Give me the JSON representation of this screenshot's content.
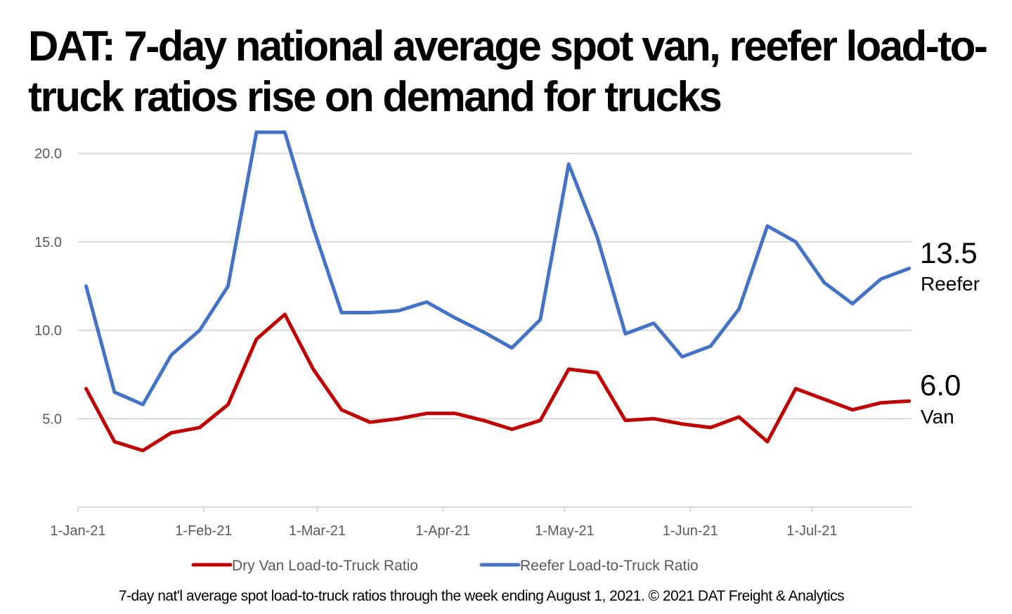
{
  "chart_data": {
    "type": "line",
    "title": "DAT: 7-day national average spot van, reefer load-to-truck ratios rise on demand for trucks",
    "caption": "7-day nat'l average spot load-to-truck ratios through the week ending August 1, 2021. © 2021 DAT Freight & Analytics",
    "xlabel": "",
    "ylabel": "",
    "ylim": [
      0,
      21.5
    ],
    "y_ticks": [
      "5.0",
      "10.0",
      "15.0",
      "20.0"
    ],
    "x_ticks": [
      "1-Jan-21",
      "1-Feb-21",
      "1-Mar-21",
      "1-Apr-21",
      "1-May-21",
      "1-Jun-21",
      "1-Jul-21"
    ],
    "x_tick_dates": [
      "2021-01-01",
      "2021-02-01",
      "2021-03-01",
      "2021-04-01",
      "2021-05-01",
      "2021-06-01",
      "2021-07-01"
    ],
    "grid": true,
    "legend": "bottom",
    "x": [
      "2021-01-03",
      "2021-01-10",
      "2021-01-17",
      "2021-01-24",
      "2021-01-31",
      "2021-02-07",
      "2021-02-14",
      "2021-02-21",
      "2021-02-28",
      "2021-03-07",
      "2021-03-14",
      "2021-03-21",
      "2021-03-28",
      "2021-04-04",
      "2021-04-11",
      "2021-04-18",
      "2021-04-25",
      "2021-05-02",
      "2021-05-09",
      "2021-05-16",
      "2021-05-23",
      "2021-05-30",
      "2021-06-06",
      "2021-06-13",
      "2021-06-20",
      "2021-06-27",
      "2021-07-04",
      "2021-07-11",
      "2021-07-18",
      "2021-07-25"
    ],
    "series": [
      {
        "name": "Dry Van Load-to-Truck Ratio",
        "color": "#C00000",
        "end_value": "6.0",
        "end_label": "Van",
        "values": [
          6.7,
          3.7,
          3.2,
          4.2,
          4.5,
          5.8,
          9.5,
          10.9,
          7.8,
          5.5,
          4.8,
          5.0,
          5.3,
          5.3,
          4.9,
          4.4,
          4.9,
          7.8,
          7.6,
          4.9,
          5.0,
          4.7,
          4.5,
          5.1,
          3.7,
          6.7,
          6.1,
          5.5,
          5.9,
          6.0
        ]
      },
      {
        "name": "Reefer Load-to-Truck Ratio",
        "color": "#4472C4",
        "end_value": "13.5",
        "end_label": "Reefer",
        "values": [
          12.5,
          6.5,
          5.8,
          8.6,
          10.0,
          12.5,
          21.2,
          21.2,
          15.8,
          11.0,
          11.0,
          11.1,
          11.6,
          10.7,
          9.9,
          9.0,
          10.6,
          19.4,
          15.3,
          9.8,
          10.4,
          8.5,
          9.1,
          11.2,
          15.9,
          15.0,
          12.7,
          11.5,
          12.9,
          13.5
        ]
      }
    ]
  }
}
